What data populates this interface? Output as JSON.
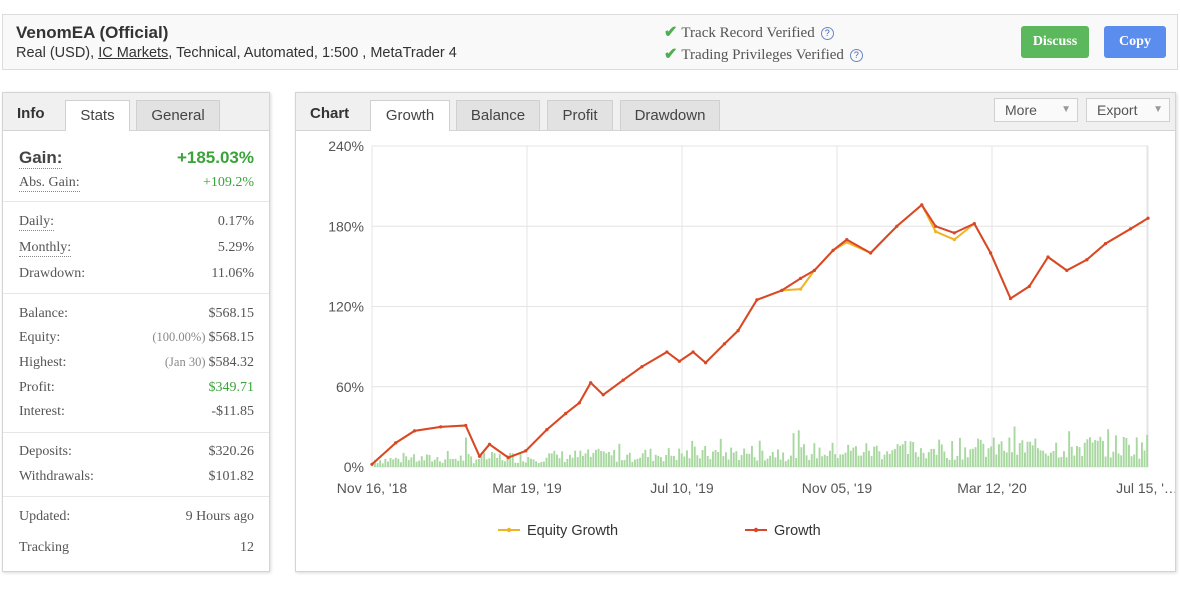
{
  "header": {
    "title": "VenomEA (Official)",
    "subtitle_pre": "Real (USD), ",
    "subtitle_link": "IC Markets",
    "subtitle_post": ", Technical, Automated, 1:500 , MetaTrader 4",
    "verified": [
      {
        "label": "Track Record Verified"
      },
      {
        "label": "Trading Privileges Verified"
      }
    ],
    "discuss_label": "Discuss",
    "copy_label": "Copy"
  },
  "info_panel": {
    "title": "Info",
    "tabs": [
      "Stats",
      "General"
    ],
    "active_tab": "Stats",
    "gain": {
      "label": "Gain:",
      "value": "+185.03%"
    },
    "abs_gain": {
      "label": "Abs. Gain:",
      "value": "+109.2%"
    },
    "daily": {
      "label": "Daily:",
      "value": "0.17%"
    },
    "monthly": {
      "label": "Monthly:",
      "value": "5.29%"
    },
    "drawdown": {
      "label": "Drawdown:",
      "value": "11.06%"
    },
    "balance": {
      "label": "Balance:",
      "value": "$568.15"
    },
    "equity": {
      "label": "Equity:",
      "note": "(100.00%)",
      "value": "$568.15"
    },
    "highest": {
      "label": "Highest:",
      "note": "(Jan 30)",
      "value": "$584.32"
    },
    "profit": {
      "label": "Profit:",
      "value": "$349.71"
    },
    "interest": {
      "label": "Interest:",
      "value": "-$11.85"
    },
    "deposits": {
      "label": "Deposits:",
      "value": "$320.26"
    },
    "withdrawals": {
      "label": "Withdrawals:",
      "value": "$101.82"
    },
    "updated": {
      "label": "Updated:",
      "value": "9 Hours ago"
    },
    "tracking": {
      "label": "Tracking",
      "value": "12"
    }
  },
  "chart_panel": {
    "title": "Chart",
    "tabs": [
      "Growth",
      "Balance",
      "Profit",
      "Drawdown"
    ],
    "active_tab": "Growth",
    "more_label": "More",
    "export_label": "Export"
  },
  "colors": {
    "growth": "#d9472b",
    "equity": "#f0b323",
    "volume": "#a8d8a0",
    "positive": "#3aa33a",
    "discuss_button": "#5cb85c",
    "copy_button": "#5b8def"
  },
  "chart_data": {
    "type": "line",
    "y_tick_labels": [
      "0%",
      "60%",
      "120%",
      "180%",
      "240%"
    ],
    "x_tick_labels": [
      "Nov 16, '18",
      "Mar 19, '19",
      "Jul 10, '19",
      "Nov 05, '19",
      "Mar 12, '20",
      "Jul 15, '…"
    ],
    "ylim": [
      0,
      240
    ],
    "grid": true,
    "legend_position": "bottom",
    "series": [
      {
        "name": "Growth",
        "x": [
          "2018-11-16",
          "2018-12-05",
          "2018-12-20",
          "2019-01-10",
          "2019-01-30",
          "2019-02-10",
          "2019-02-18",
          "2019-03-05",
          "2019-03-19",
          "2019-04-05",
          "2019-04-20",
          "2019-05-01",
          "2019-05-10",
          "2019-05-20",
          "2019-06-05",
          "2019-06-20",
          "2019-07-10",
          "2019-07-20",
          "2019-07-31",
          "2019-08-10",
          "2019-08-25",
          "2019-09-05",
          "2019-09-20",
          "2019-10-10",
          "2019-10-25",
          "2019-11-05",
          "2019-11-20",
          "2019-12-01",
          "2019-12-20",
          "2020-01-10",
          "2020-01-30",
          "2020-02-10",
          "2020-02-25",
          "2020-03-12",
          "2020-03-25",
          "2020-04-10",
          "2020-04-25",
          "2020-05-10",
          "2020-05-25",
          "2020-06-10",
          "2020-06-25",
          "2020-07-15",
          "2020-07-29"
        ],
        "values": [
          2,
          18,
          27,
          30,
          31,
          8,
          17,
          7,
          12,
          28,
          40,
          48,
          63,
          54,
          65,
          75,
          86,
          79,
          86,
          78,
          92,
          102,
          125,
          132,
          141,
          147,
          162,
          170,
          160,
          180,
          196,
          180,
          175,
          182,
          160,
          126,
          135,
          157,
          147,
          155,
          167,
          178,
          186
        ]
      },
      {
        "name": "Equity Growth",
        "x": [
          "2018-11-16",
          "2018-12-05",
          "2018-12-20",
          "2019-01-10",
          "2019-01-30",
          "2019-02-10",
          "2019-02-18",
          "2019-03-05",
          "2019-03-19",
          "2019-04-05",
          "2019-04-20",
          "2019-05-01",
          "2019-05-10",
          "2019-05-20",
          "2019-06-05",
          "2019-06-20",
          "2019-07-10",
          "2019-07-20",
          "2019-07-31",
          "2019-08-10",
          "2019-08-25",
          "2019-09-05",
          "2019-09-20",
          "2019-10-10",
          "2019-10-25",
          "2019-11-05",
          "2019-11-20",
          "2019-12-01",
          "2019-12-20",
          "2020-01-10",
          "2020-01-30",
          "2020-02-10",
          "2020-02-25",
          "2020-03-12",
          "2020-03-25",
          "2020-04-10",
          "2020-04-25",
          "2020-05-10",
          "2020-05-25",
          "2020-06-10",
          "2020-06-25",
          "2020-07-15",
          "2020-07-29"
        ],
        "values": [
          2,
          18,
          27,
          30,
          31,
          8,
          17,
          7,
          12,
          28,
          40,
          48,
          63,
          54,
          65,
          75,
          86,
          79,
          86,
          78,
          92,
          102,
          125,
          132,
          133,
          147,
          162,
          168,
          160,
          180,
          196,
          176,
          170,
          182,
          160,
          126,
          135,
          157,
          147,
          155,
          167,
          178,
          186
        ]
      }
    ]
  }
}
